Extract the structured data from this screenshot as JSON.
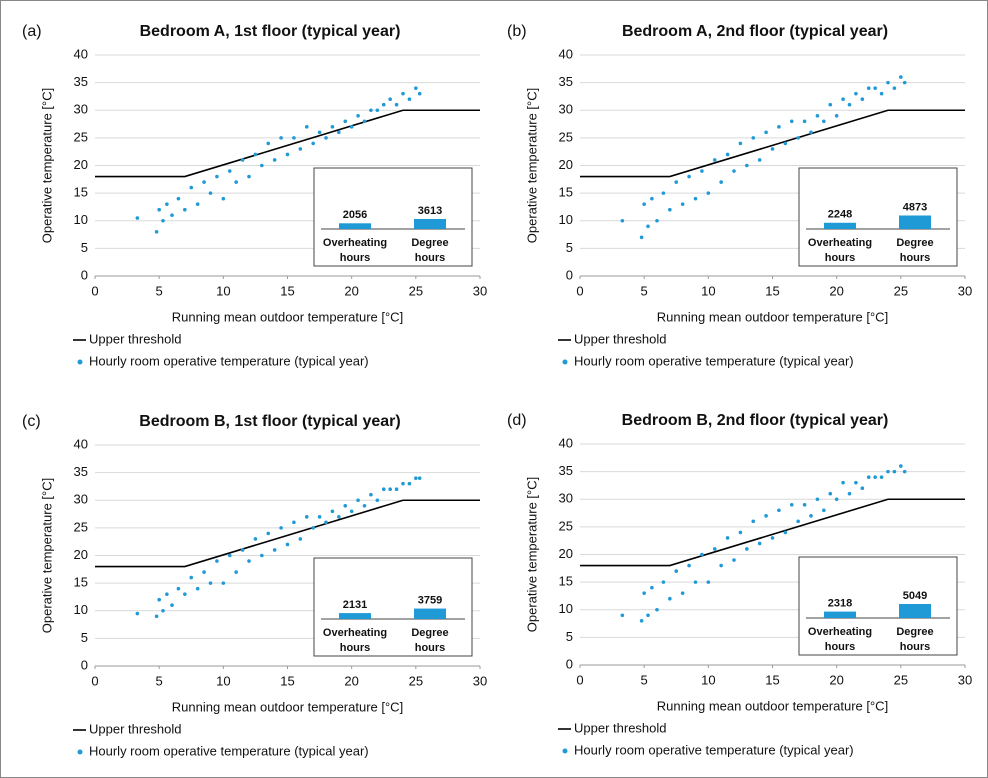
{
  "chart_data": [
    {
      "type": "scatter",
      "panel_label": "(a)",
      "title": "Bedroom A, 1st floor (typical year)",
      "x_label": "Running mean outdoor temperature [°C]",
      "y_label": "Operative temperature [°C]",
      "xlim": [
        0,
        30
      ],
      "ylim": [
        0,
        40
      ],
      "xticks": [
        0,
        5,
        10,
        15,
        20,
        25,
        30
      ],
      "yticks": [
        0,
        5,
        10,
        15,
        20,
        25,
        30,
        35,
        40
      ],
      "grid": true,
      "series": [
        {
          "name": "Upper threshold",
          "type": "line",
          "color": "#000000",
          "x": [
            0,
            7,
            24,
            30
          ],
          "values": [
            18,
            18,
            30,
            30
          ]
        },
        {
          "name": "Hourly room operative temperature (typical year)",
          "type": "scatter",
          "color": "#1f9ad6",
          "x": [
            3.3,
            4.8,
            5.0,
            5.3,
            5.6,
            6.0,
            6.5,
            7.0,
            7.5,
            8.0,
            8.5,
            9.0,
            9.5,
            10.0,
            10.5,
            11.0,
            11.5,
            12.0,
            12.5,
            13.0,
            13.5,
            14.0,
            14.5,
            15.0,
            15.5,
            16.0,
            16.5,
            17.0,
            17.5,
            18.0,
            18.5,
            19.0,
            19.5,
            20.0,
            20.5,
            21.0,
            21.5,
            22.0,
            22.5,
            23.0,
            23.5,
            24.0,
            24.5,
            25.0,
            25.3
          ],
          "values": [
            10.5,
            8,
            12,
            10,
            13,
            11,
            14,
            12,
            16,
            13,
            17,
            15,
            18,
            14,
            19,
            17,
            21,
            18,
            22,
            20,
            24,
            21,
            25,
            22,
            25,
            23,
            27,
            24,
            26,
            25,
            27,
            26,
            28,
            27,
            29,
            28,
            30,
            30,
            31,
            32,
            31,
            33,
            32,
            34,
            33
          ]
        }
      ],
      "inset": {
        "type": "bar",
        "categories": [
          "Overheating hours",
          "Degree hours"
        ],
        "values": [
          2056,
          3613
        ],
        "color": "#1f9ad6"
      }
    },
    {
      "type": "scatter",
      "panel_label": "(b)",
      "title": "Bedroom A, 2nd floor (typical year)",
      "x_label": "Running mean outdoor temperature [°C]",
      "y_label": "Operative temperature [°C]",
      "xlim": [
        0,
        30
      ],
      "ylim": [
        0,
        40
      ],
      "xticks": [
        0,
        5,
        10,
        15,
        20,
        25,
        30
      ],
      "yticks": [
        0,
        5,
        10,
        15,
        20,
        25,
        30,
        35,
        40
      ],
      "grid": true,
      "series": [
        {
          "name": "Upper threshold",
          "type": "line",
          "color": "#000000",
          "x": [
            0,
            7,
            24,
            30
          ],
          "values": [
            18,
            18,
            30,
            30
          ]
        },
        {
          "name": "Hourly room operative temperature (typical year)",
          "type": "scatter",
          "color": "#1f9ad6",
          "x": [
            3.3,
            4.8,
            5.0,
            5.3,
            5.6,
            6.0,
            6.5,
            7.0,
            7.5,
            8.0,
            8.5,
            9.0,
            9.5,
            10.0,
            10.5,
            11.0,
            11.5,
            12.0,
            12.5,
            13.0,
            13.5,
            14.0,
            14.5,
            15.0,
            15.5,
            16.0,
            16.5,
            17.0,
            17.5,
            18.0,
            18.5,
            19.0,
            19.5,
            20.0,
            20.5,
            21.0,
            21.5,
            22.0,
            22.5,
            23.0,
            23.5,
            24.0,
            24.5,
            25.0,
            25.3
          ],
          "values": [
            10,
            7,
            13,
            9,
            14,
            10,
            15,
            12,
            17,
            13,
            18,
            14,
            19,
            15,
            21,
            17,
            22,
            19,
            24,
            20,
            25,
            21,
            26,
            23,
            27,
            24,
            28,
            25,
            28,
            26,
            29,
            28,
            31,
            29,
            32,
            31,
            33,
            32,
            34,
            34,
            33,
            35,
            34,
            36,
            35
          ]
        }
      ],
      "inset": {
        "type": "bar",
        "categories": [
          "Overheating hours",
          "Degree hours"
        ],
        "values": [
          2248,
          4873
        ],
        "color": "#1f9ad6"
      }
    },
    {
      "type": "scatter",
      "panel_label": "(c)",
      "title": "Bedroom B, 1st floor (typical year)",
      "x_label": "Running mean outdoor temperature [°C]",
      "y_label": "Operative temperature [°C]",
      "xlim": [
        0,
        30
      ],
      "ylim": [
        0,
        40
      ],
      "xticks": [
        0,
        5,
        10,
        15,
        20,
        25,
        30
      ],
      "yticks": [
        0,
        5,
        10,
        15,
        20,
        25,
        30,
        35,
        40
      ],
      "grid": true,
      "series": [
        {
          "name": "Upper threshold",
          "type": "line",
          "color": "#000000",
          "x": [
            0,
            7,
            24,
            30
          ],
          "values": [
            18,
            18,
            30,
            30
          ]
        },
        {
          "name": "Hourly room operative temperature (typical year)",
          "type": "scatter",
          "color": "#1f9ad6",
          "x": [
            3.3,
            4.8,
            5.0,
            5.3,
            5.6,
            6.0,
            6.5,
            7.0,
            7.5,
            8.0,
            8.5,
            9.0,
            9.5,
            10.0,
            10.5,
            11.0,
            11.5,
            12.0,
            12.5,
            13.0,
            13.5,
            14.0,
            14.5,
            15.0,
            15.5,
            16.0,
            16.5,
            17.0,
            17.5,
            18.0,
            18.5,
            19.0,
            19.5,
            20.0,
            20.5,
            21.0,
            21.5,
            22.0,
            22.5,
            23.0,
            23.5,
            24.0,
            24.5,
            25.0,
            25.3
          ],
          "values": [
            9.5,
            9,
            12,
            10,
            13,
            11,
            14,
            13,
            16,
            14,
            17,
            15,
            19,
            15,
            20,
            17,
            21,
            19,
            23,
            20,
            24,
            21,
            25,
            22,
            26,
            23,
            27,
            25,
            27,
            26,
            28,
            27,
            29,
            28,
            30,
            29,
            31,
            30,
            32,
            32,
            32,
            33,
            33,
            34,
            34
          ]
        }
      ],
      "inset": {
        "type": "bar",
        "categories": [
          "Overheating hours",
          "Degree hours"
        ],
        "values": [
          2131,
          3759
        ],
        "color": "#1f9ad6"
      }
    },
    {
      "type": "scatter",
      "panel_label": "(d)",
      "title": "Bedroom B, 2nd floor (typical year)",
      "x_label": "Running mean outdoor temperature [°C]",
      "y_label": "Operative temperature [°C]",
      "xlim": [
        0,
        30
      ],
      "ylim": [
        0,
        40
      ],
      "xticks": [
        0,
        5,
        10,
        15,
        20,
        25,
        30
      ],
      "yticks": [
        0,
        5,
        10,
        15,
        20,
        25,
        30,
        35,
        40
      ],
      "grid": true,
      "series": [
        {
          "name": "Upper threshold",
          "type": "line",
          "color": "#000000",
          "x": [
            0,
            7,
            24,
            30
          ],
          "values": [
            18,
            18,
            30,
            30
          ]
        },
        {
          "name": "Hourly room operative temperature (typical year)",
          "type": "scatter",
          "color": "#1f9ad6",
          "x": [
            3.3,
            4.8,
            5.0,
            5.3,
            5.6,
            6.0,
            6.5,
            7.0,
            7.5,
            8.0,
            8.5,
            9.0,
            9.5,
            10.0,
            10.5,
            11.0,
            11.5,
            12.0,
            12.5,
            13.0,
            13.5,
            14.0,
            14.5,
            15.0,
            15.5,
            16.0,
            16.5,
            17.0,
            17.5,
            18.0,
            18.5,
            19.0,
            19.5,
            20.0,
            20.5,
            21.0,
            21.5,
            22.0,
            22.5,
            23.0,
            23.5,
            24.0,
            24.5,
            25.0,
            25.3
          ],
          "values": [
            9,
            8,
            13,
            9,
            14,
            10,
            15,
            12,
            17,
            13,
            18,
            15,
            20,
            15,
            21,
            18,
            23,
            19,
            24,
            21,
            26,
            22,
            27,
            23,
            28,
            24,
            29,
            26,
            29,
            27,
            30,
            28,
            31,
            30,
            33,
            31,
            33,
            32,
            34,
            34,
            34,
            35,
            35,
            36,
            35
          ]
        }
      ],
      "inset": {
        "type": "bar",
        "categories": [
          "Overheating hours",
          "Degree hours"
        ],
        "values": [
          2318,
          5049
        ],
        "color": "#1f9ad6"
      }
    }
  ]
}
